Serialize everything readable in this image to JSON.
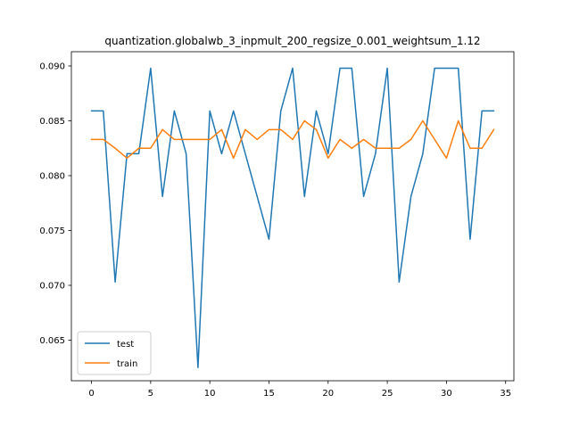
{
  "chart_data": {
    "type": "line",
    "title": "quantization.globalwb_3_inpmult_200_regsize_0.001_weightsum_1.12",
    "xlabel": "",
    "ylabel": "",
    "xlim": [
      -1.7,
      35.7
    ],
    "ylim": [
      0.0613,
      0.0913
    ],
    "xticks": [
      0,
      5,
      10,
      15,
      20,
      25,
      30,
      35
    ],
    "yticks": [
      0.065,
      0.07,
      0.075,
      0.08,
      0.085,
      0.09
    ],
    "ytick_labels": [
      "0.065",
      "0.070",
      "0.075",
      "0.080",
      "0.085",
      "0.090"
    ],
    "grid": false,
    "legend": {
      "position": "lower-left"
    },
    "x": [
      0,
      1,
      2,
      3,
      4,
      5,
      6,
      7,
      8,
      9,
      10,
      11,
      12,
      13,
      14,
      15,
      16,
      17,
      18,
      19,
      20,
      21,
      22,
      23,
      24,
      25,
      26,
      27,
      28,
      29,
      30,
      31,
      32,
      33,
      34
    ],
    "series": [
      {
        "name": "test",
        "color": "#1f77b4",
        "values": [
          0.0859,
          0.0859,
          0.0703,
          0.082,
          0.082,
          0.0898,
          0.0781,
          0.0859,
          0.082,
          0.0625,
          0.0859,
          0.082,
          0.0859,
          0.082,
          0.0781,
          0.0742,
          0.0859,
          0.0898,
          0.0781,
          0.0859,
          0.082,
          0.0898,
          0.0898,
          0.0781,
          0.082,
          0.0898,
          0.0703,
          0.0781,
          0.082,
          0.0898,
          0.0898,
          0.0898,
          0.0742,
          0.0859,
          0.0859
        ]
      },
      {
        "name": "train",
        "color": "#ff7f0e",
        "values": [
          0.0833,
          0.0833,
          0.0825,
          0.0816,
          0.0825,
          0.0825,
          0.0842,
          0.0833,
          0.0833,
          0.0833,
          0.0833,
          0.0842,
          0.0816,
          0.0842,
          0.0833,
          0.0842,
          0.0842,
          0.0833,
          0.085,
          0.0842,
          0.0816,
          0.0833,
          0.0825,
          0.0833,
          0.0825,
          0.0825,
          0.0825,
          0.0833,
          0.085,
          0.0833,
          0.0816,
          0.085,
          0.0825,
          0.0825,
          0.0842
        ]
      }
    ]
  }
}
